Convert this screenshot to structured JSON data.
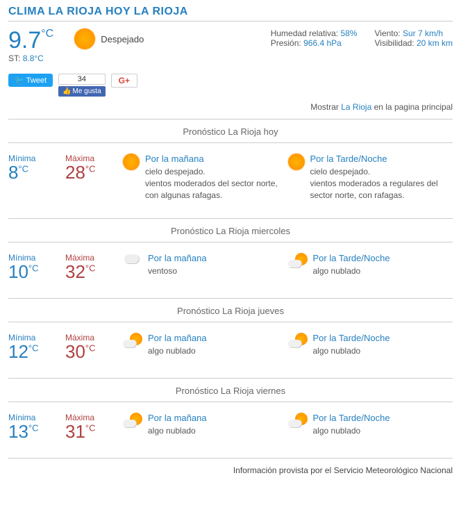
{
  "title": "CLIMA LA RIOJA HOY LA RIOJA",
  "current": {
    "temp": "9.7",
    "st_label": "ST:",
    "st_value": "8.8°C",
    "condition": "Despejado",
    "humidity_label": "Humedad relativa:",
    "humidity_value": "58%",
    "pressure_label": "Presión:",
    "pressure_value": "966.4 hPa",
    "wind_label": "Viento:",
    "wind_value": "Sur 7 km/h",
    "visibility_label": "Visibilidad:",
    "visibility_value": "20 km km"
  },
  "social": {
    "tweet": "Tweet",
    "fb_count": "34",
    "fb_like": "Me gusta",
    "gplus": "G+"
  },
  "show_link": {
    "prefix": "Mostrar ",
    "link": "La Rioja",
    "suffix": " en la pagina principal"
  },
  "forecasts": [
    {
      "header": "Pronóstico La Rioja hoy",
      "min_label": "Mínima",
      "min": "8",
      "max_label": "Máxima",
      "max": "28",
      "morning_icon": "sun",
      "morning_title": "Por la mañana",
      "morning_desc": "cielo despejado.\nvientos moderados del sector norte, con algunas rafagas.",
      "evening_icon": "sun",
      "evening_title": "Por la Tarde/Noche",
      "evening_desc": "cielo despejado.\nvientos moderados a regulares del sector norte, con rafagas."
    },
    {
      "header": "Pronóstico La Rioja miercoles",
      "min_label": "Mínima",
      "min": "10",
      "max_label": "Máxima",
      "max": "32",
      "morning_icon": "cloud-wind",
      "morning_title": "Por la mañana",
      "morning_desc": "ventoso",
      "evening_icon": "sun-cloud",
      "evening_title": "Por la Tarde/Noche",
      "evening_desc": "algo nublado"
    },
    {
      "header": "Pronóstico La Rioja jueves",
      "min_label": "Mínima",
      "min": "12",
      "max_label": "Máxima",
      "max": "30",
      "morning_icon": "sun-cloud",
      "morning_title": "Por la mañana",
      "morning_desc": "algo nublado",
      "evening_icon": "sun-cloud",
      "evening_title": "Por la Tarde/Noche",
      "evening_desc": "algo nublado"
    },
    {
      "header": "Pronóstico La Rioja viernes",
      "min_label": "Mínima",
      "min": "13",
      "max_label": "Máxima",
      "max": "31",
      "morning_icon": "sun-cloud",
      "morning_title": "Por la mañana",
      "morning_desc": "algo nublado",
      "evening_icon": "sun-cloud",
      "evening_title": "Por la Tarde/Noche",
      "evening_desc": "algo nublado"
    }
  ],
  "footer": "Información provista por el Servicio Meteorológico Nacional",
  "degC": "°C"
}
